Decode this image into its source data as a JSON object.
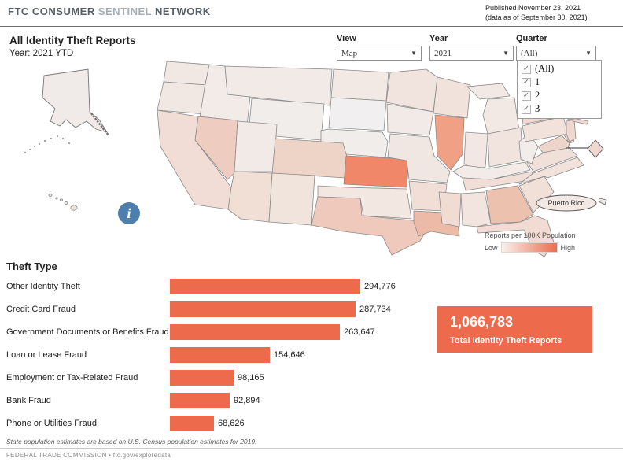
{
  "header": {
    "brand_part1": "FTC CONSUMER",
    "brand_part2": "SENTINEL",
    "brand_part3": "NETWORK",
    "published_line1": "Published November 23, 2021",
    "published_line2": "(data as of September 30, 2021)"
  },
  "report": {
    "title": "All Identity Theft Reports",
    "subtitle": "Year: 2021 YTD"
  },
  "controls": {
    "view": {
      "label": "View",
      "value": "Map"
    },
    "year": {
      "label": "Year",
      "value": "2021"
    },
    "quarter": {
      "label": "Quarter",
      "value": "(All)",
      "options": [
        {
          "label": "(All)",
          "checked": true
        },
        {
          "label": "1",
          "checked": true
        },
        {
          "label": "2",
          "checked": true
        },
        {
          "label": "3",
          "checked": true
        }
      ]
    }
  },
  "map": {
    "legend": {
      "title": "Reports per 100K Population",
      "low_label": "Low",
      "high_label": "High",
      "gradient_start": "#f8f1ee",
      "gradient_end": "#ec6c4e"
    },
    "puerto_rico_label": "Puerto Rico",
    "border_color": "#8a8a8a",
    "states": [
      {
        "id": "WA",
        "name": "Washington",
        "fill": "#f1e7e3"
      },
      {
        "id": "OR",
        "name": "Oregon",
        "fill": "#f1e8e4"
      },
      {
        "id": "CA",
        "name": "California",
        "fill": "#f1ddd5"
      },
      {
        "id": "NV",
        "name": "Nevada",
        "fill": "#efccc0"
      },
      {
        "id": "ID",
        "name": "Idaho",
        "fill": "#f2ebe7"
      },
      {
        "id": "MT",
        "name": "Montana",
        "fill": "#f2eae6"
      },
      {
        "id": "WY",
        "name": "Wyoming",
        "fill": "#f1edeb"
      },
      {
        "id": "UT",
        "name": "Utah",
        "fill": "#f2eae6"
      },
      {
        "id": "CO",
        "name": "Colorado",
        "fill": "#eed3c7"
      },
      {
        "id": "AZ",
        "name": "Arizona",
        "fill": "#f1ded4"
      },
      {
        "id": "NM",
        "name": "New Mexico",
        "fill": "#f1e4dd"
      },
      {
        "id": "ND",
        "name": "North Dakota",
        "fill": "#f2e9e5"
      },
      {
        "id": "SD",
        "name": "South Dakota",
        "fill": "#f1efef"
      },
      {
        "id": "NE",
        "name": "Nebraska",
        "fill": "#f1edeb"
      },
      {
        "id": "KS",
        "name": "Kansas",
        "fill": "#f08768"
      },
      {
        "id": "OK",
        "name": "Oklahoma",
        "fill": "#f2e7e1"
      },
      {
        "id": "TX",
        "name": "Texas",
        "fill": "#efcabc"
      },
      {
        "id": "MN",
        "name": "Minnesota",
        "fill": "#f1e3dd"
      },
      {
        "id": "IA",
        "name": "Iowa",
        "fill": "#f2eae6"
      },
      {
        "id": "MO",
        "name": "Missouri",
        "fill": "#f1e7e2"
      },
      {
        "id": "AR",
        "name": "Arkansas",
        "fill": "#f1ded6"
      },
      {
        "id": "LA",
        "name": "Louisiana",
        "fill": "#edbaa7"
      },
      {
        "id": "WI",
        "name": "Wisconsin",
        "fill": "#f1e2db"
      },
      {
        "id": "IL",
        "name": "Illinois",
        "fill": "#efa085"
      },
      {
        "id": "MI",
        "name": "Michigan",
        "fill": "#f2e8e4"
      },
      {
        "id": "IN",
        "name": "Indiana",
        "fill": "#f2e7e2"
      },
      {
        "id": "OH",
        "name": "Ohio",
        "fill": "#f1e3dd"
      },
      {
        "id": "KY",
        "name": "Kentucky",
        "fill": "#f2ebe7"
      },
      {
        "id": "TN",
        "name": "Tennessee",
        "fill": "#f1ded7"
      },
      {
        "id": "MS",
        "name": "Mississippi",
        "fill": "#f1dcd3"
      },
      {
        "id": "AL",
        "name": "Alabama",
        "fill": "#f2e5df"
      },
      {
        "id": "GA",
        "name": "Georgia",
        "fill": "#ecc1ae"
      },
      {
        "id": "FL",
        "name": "Florida",
        "fill": "#f1dbd2"
      },
      {
        "id": "SC",
        "name": "South Carolina",
        "fill": "#f1e0d8"
      },
      {
        "id": "NC",
        "name": "North Carolina",
        "fill": "#f1e2dc"
      },
      {
        "id": "VA",
        "name": "Virginia",
        "fill": "#f1e0da"
      },
      {
        "id": "WV",
        "name": "West Virginia",
        "fill": "#f2eceb"
      },
      {
        "id": "MD",
        "name": "Maryland",
        "fill": "#eed5cb"
      },
      {
        "id": "DE",
        "name": "Delaware",
        "fill": "#eed8cf"
      },
      {
        "id": "PA",
        "name": "Pennsylvania",
        "fill": "#f1e2dc"
      },
      {
        "id": "NJ",
        "name": "New Jersey",
        "fill": "#f0d8cf"
      },
      {
        "id": "NY",
        "name": "New York",
        "fill": "#f0d8d0"
      },
      {
        "id": "CT",
        "name": "Connecticut",
        "fill": "#eecfc5"
      },
      {
        "id": "RI",
        "name": "Rhode Island",
        "fill": "#e84f33"
      },
      {
        "id": "MA",
        "name": "Massachusetts",
        "fill": "#eed3c9"
      },
      {
        "id": "VT",
        "name": "Vermont",
        "fill": "#f1eeee"
      },
      {
        "id": "NH",
        "name": "New Hampshire",
        "fill": "#f2ebe8"
      },
      {
        "id": "ME",
        "name": "Maine",
        "fill": "#f2e9e5"
      },
      {
        "id": "AK",
        "name": "Alaska",
        "fill": "#f0ebe8"
      },
      {
        "id": "HI",
        "name": "Hawaii",
        "fill": "#efe3de"
      },
      {
        "id": "DC",
        "name": "District of Columbia",
        "fill": "#f0d8d0"
      },
      {
        "id": "PR",
        "name": "Puerto Rico",
        "fill": "#f2e9e5"
      }
    ]
  },
  "chart_data": {
    "type": "bar",
    "title": "Theft Type",
    "categories": [
      "Other Identity Theft",
      "Credit Card Fraud",
      "Government Documents or Benefits Fraud",
      "Loan or Lease Fraud",
      "Employment or Tax-Related Fraud",
      "Bank Fraud",
      "Phone or Utilities Fraud"
    ],
    "values": [
      294776,
      287734,
      263647,
      154646,
      98165,
      92894,
      68626
    ],
    "value_labels": [
      "294,776",
      "287,734",
      "263,647",
      "154,646",
      "98,165",
      "92,894",
      "68,626"
    ],
    "bar_color": "#ed6a4d",
    "xlim": [
      0,
      294776
    ],
    "orientation": "horizontal"
  },
  "total": {
    "value": "1,066,783",
    "label": "Total Identity Theft Reports",
    "bg": "#ed6a4d"
  },
  "footnote": "State population estimates are based on U.S. Census population estimates for 2019.",
  "footer": "FEDERAL TRADE COMMISSION • ftc.gov/exploredata",
  "info_icon_glyph": "i"
}
